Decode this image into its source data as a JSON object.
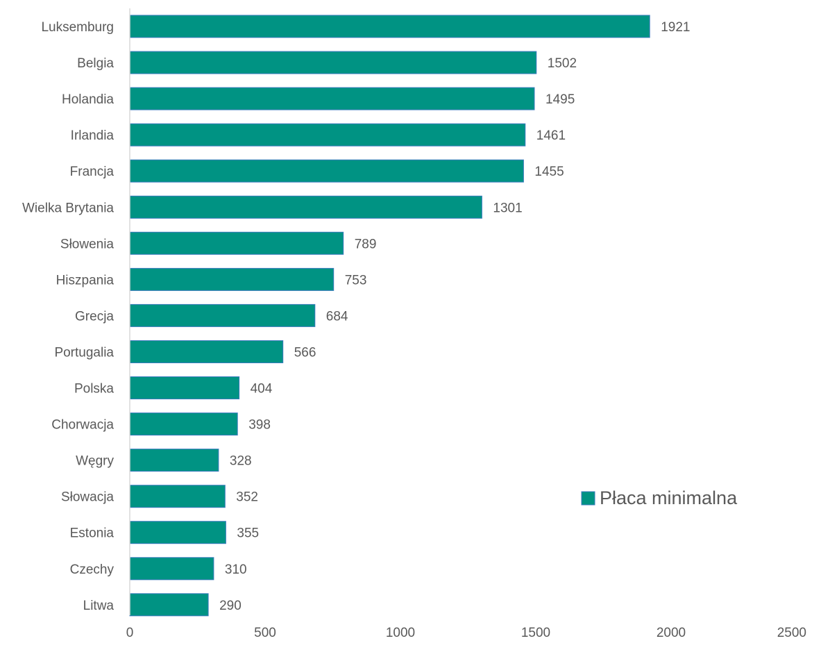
{
  "chart_data": {
    "type": "bar",
    "orientation": "horizontal",
    "categories": [
      "Luksemburg",
      "Belgia",
      "Holandia",
      "Irlandia",
      "Francja",
      "Wielka Brytania",
      "Słowenia",
      "Hiszpania",
      "Grecja",
      "Portugalia",
      "Polska",
      "Chorwacja",
      "Węgry",
      "Słowacja",
      "Estonia",
      "Czechy",
      "Litwa"
    ],
    "series": [
      {
        "name": "Płaca minimalna",
        "values": [
          1921,
          1502,
          1495,
          1461,
          1455,
          1301,
          789,
          753,
          684,
          566,
          404,
          398,
          328,
          352,
          355,
          310,
          290
        ],
        "color": "#009383"
      }
    ],
    "data_labels": [
      "1921",
      "1502",
      "1495",
      "1461",
      "1455",
      "1301",
      "789",
      "753",
      "684",
      "566",
      "404",
      "398",
      "328",
      "352",
      "355",
      "310",
      "290"
    ],
    "x_ticks": [
      "0",
      "500",
      "1000",
      "1500",
      "2000",
      "2500"
    ],
    "xlim": [
      0,
      2500
    ],
    "title": "",
    "xlabel": "",
    "ylabel": "",
    "grid": false,
    "legend": {
      "placement": "right",
      "entries": [
        "Płaca minimalna"
      ]
    },
    "colors": {
      "bar_fill": "#009383",
      "bar_stroke": "#3b7bbd",
      "axis": "#d9d9d9",
      "text": "#595959"
    }
  }
}
